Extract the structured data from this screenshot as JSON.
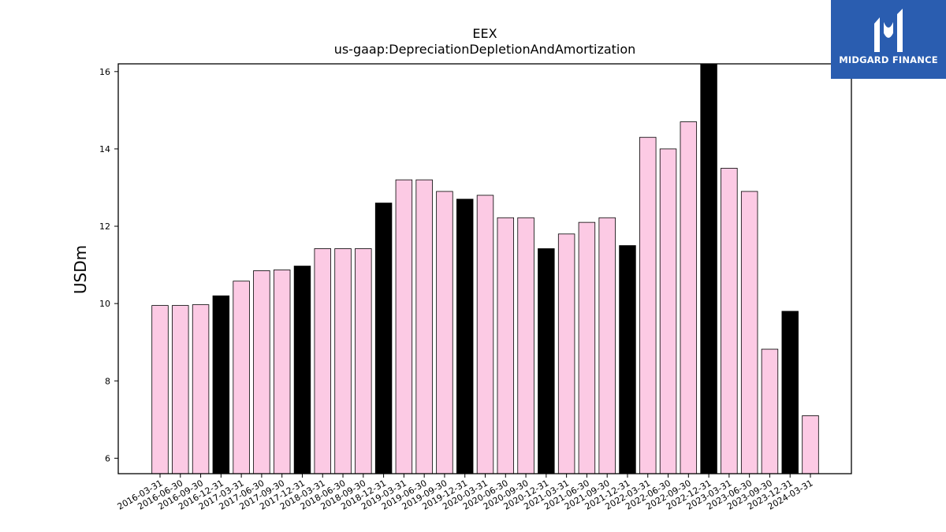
{
  "brand": {
    "name": "MIDGARD FINANCE",
    "color": "#2a5db0",
    "icon": "midgard-logo-icon"
  },
  "colors": {
    "bar_default": "#fccae4",
    "bar_highlight": "#000000",
    "bar_edge": "#000000"
  },
  "chart_data": {
    "type": "bar",
    "title": "EEX",
    "subtitle": "us-gaap:DepreciationDepletionAndAmortization",
    "xlabel": "",
    "ylabel": "USDm",
    "ylim": [
      5.6,
      16.2
    ],
    "yticks": [
      6,
      8,
      10,
      12,
      14,
      16
    ],
    "grid": false,
    "categories": [
      "2016-03-31",
      "2016-06-30",
      "2016-09-30",
      "2016-12-31",
      "2017-03-31",
      "2017-06-30",
      "2017-09-30",
      "2017-12-31",
      "2018-03-31",
      "2018-06-30",
      "2018-09-30",
      "2018-12-31",
      "2019-03-31",
      "2019-06-30",
      "2019-09-30",
      "2019-12-31",
      "2020-03-31",
      "2020-06-30",
      "2020-09-30",
      "2020-12-31",
      "2021-03-31",
      "2021-06-30",
      "2021-09-30",
      "2021-12-31",
      "2022-03-31",
      "2022-06-30",
      "2022-09-30",
      "2022-12-31",
      "2023-03-31",
      "2023-06-30",
      "2023-09-30",
      "2023-12-31",
      "2024-03-31"
    ],
    "values": [
      9.95,
      9.95,
      9.97,
      10.2,
      10.58,
      10.85,
      10.87,
      10.97,
      11.42,
      11.42,
      11.42,
      12.6,
      13.2,
      13.2,
      12.9,
      12.7,
      12.8,
      12.22,
      12.22,
      11.42,
      11.8,
      12.1,
      12.22,
      11.5,
      14.3,
      14.0,
      14.7,
      16.4,
      13.5,
      12.9,
      8.82,
      9.8,
      7.1
    ],
    "highlight": [
      false,
      false,
      false,
      true,
      false,
      false,
      false,
      true,
      false,
      false,
      false,
      true,
      false,
      false,
      false,
      true,
      false,
      false,
      false,
      true,
      false,
      false,
      false,
      true,
      false,
      false,
      false,
      true,
      false,
      false,
      false,
      true,
      false
    ]
  }
}
